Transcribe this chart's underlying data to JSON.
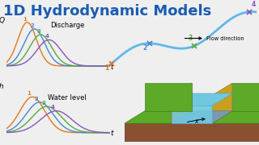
{
  "title": "1D Hydrodynamic Models",
  "title_color": "#1a5cb0",
  "title_fontsize": 13,
  "bg_color": "#efefef",
  "discharge_label": "Discharge",
  "waterlevel_label": "Water level",
  "flow_direction_label": "Flow direction",
  "curve_colors": [
    "#e07820",
    "#4488cc",
    "#55aa44",
    "#8855bb"
  ],
  "node_labels": [
    "1",
    "2",
    "3",
    "4"
  ],
  "node_colors_river": [
    "#e07820",
    "#4488cc",
    "#55aa44",
    "#8855bb"
  ],
  "river_color": "#60b8e8",
  "channel_green_top": "#5caa28",
  "channel_green_side": "#4a8a18",
  "channel_brown": "#8B5030",
  "channel_yellow": "#c8a020",
  "channel_water": "#70c8e0",
  "channel_water_dark": "#50a8c0",
  "channel_wall_yellow": "#d4b030",
  "x_label": "x"
}
